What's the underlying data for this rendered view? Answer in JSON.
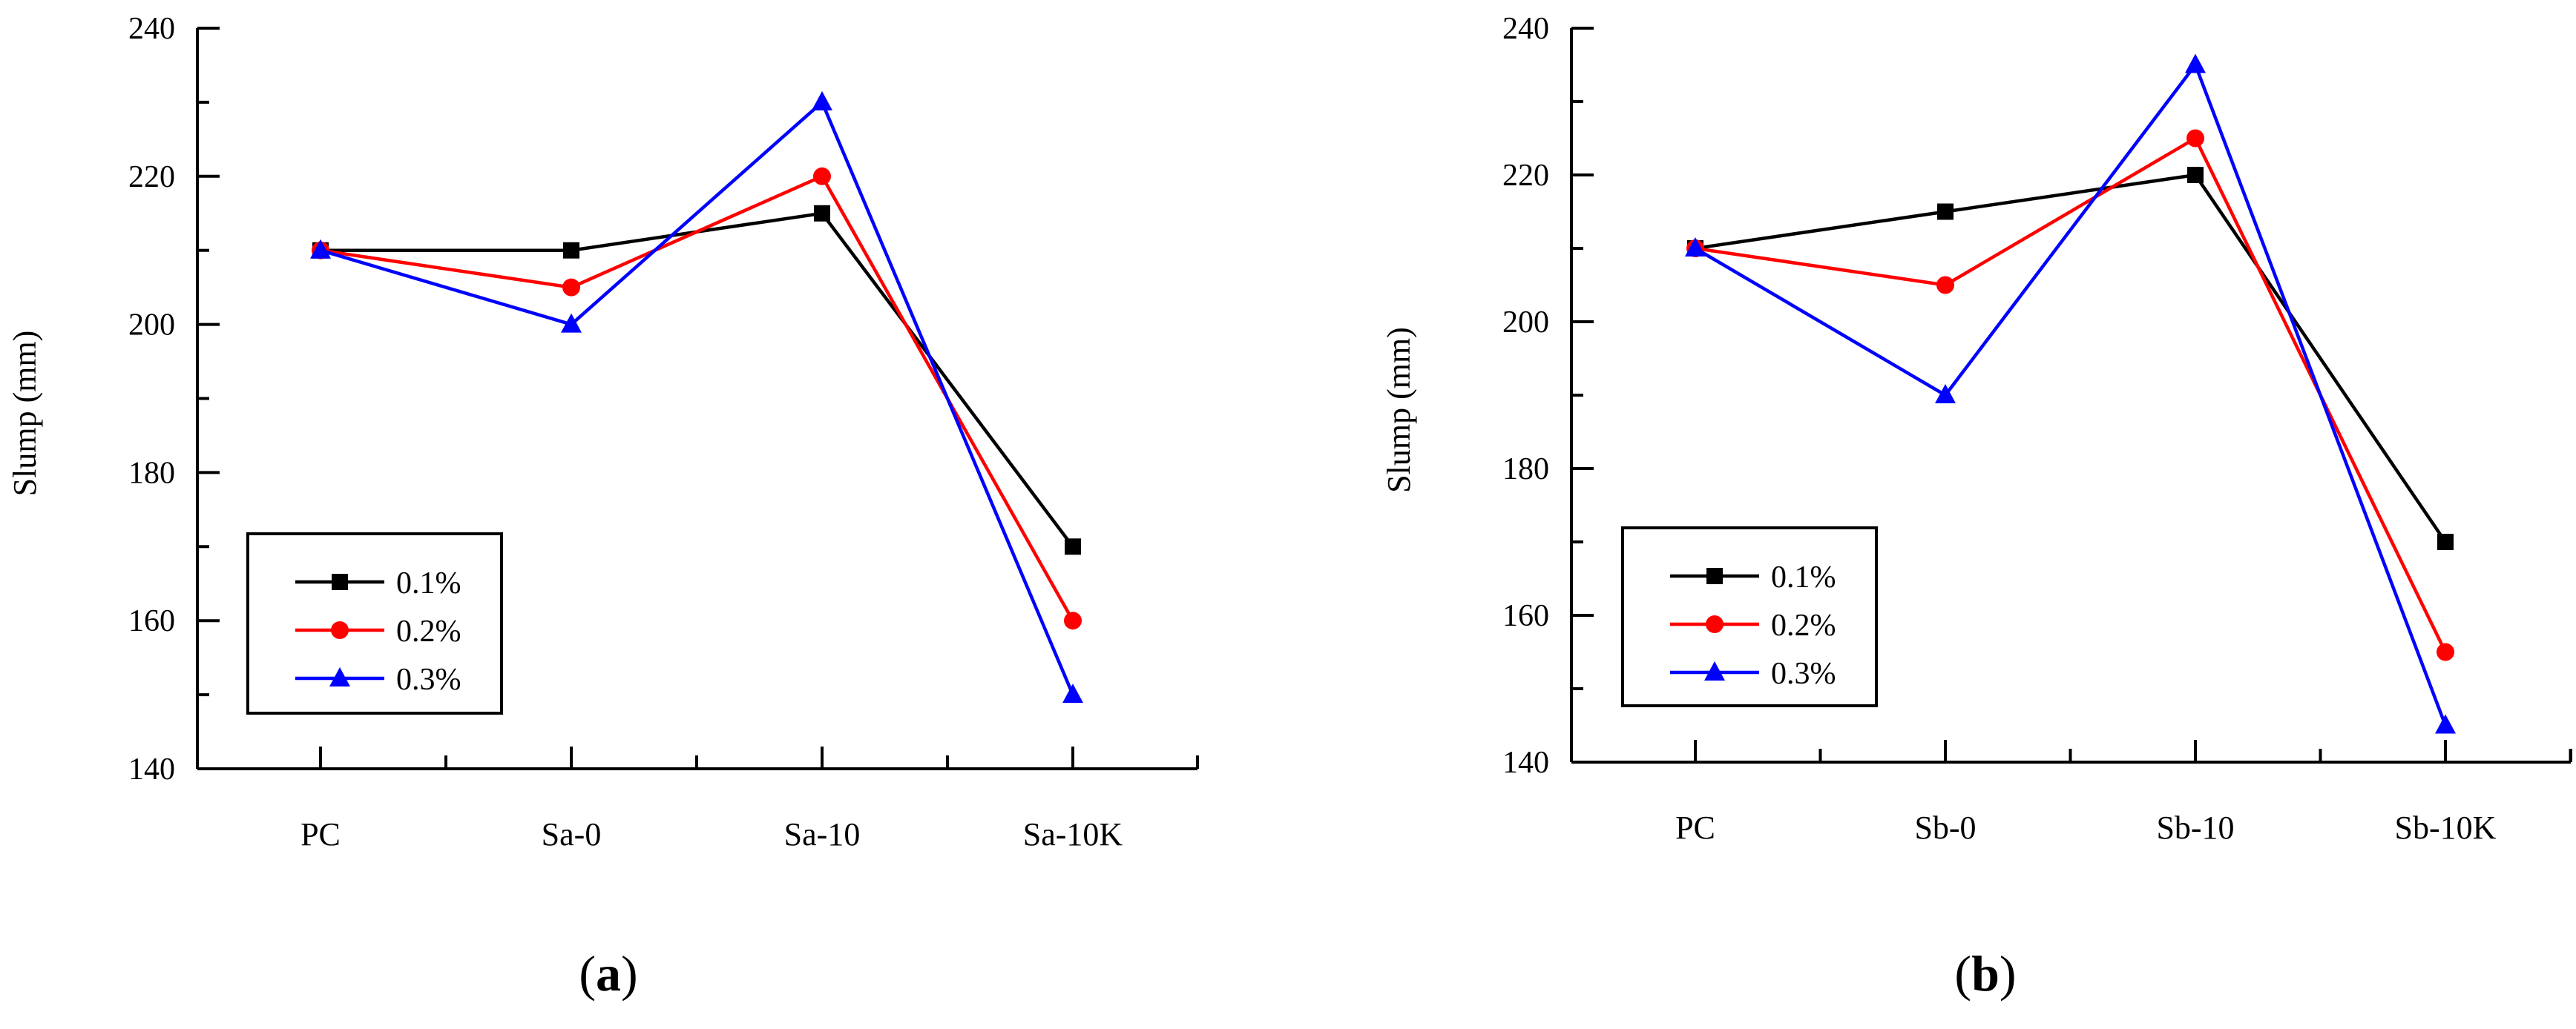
{
  "chart_data": [
    {
      "type": "line",
      "id": "a",
      "caption": "a",
      "categories": [
        "PC",
        "Sa-0",
        "Sa-10",
        "Sa-10K"
      ],
      "ylabel": "Slump (mm)",
      "xlabel": "",
      "ylim": [
        140,
        240
      ],
      "yticks": [
        140,
        160,
        180,
        200,
        220,
        240
      ],
      "grid": false,
      "legend_position": "bottom-left",
      "series": [
        {
          "name": "0.1%",
          "color": "#000000",
          "marker": "square",
          "values": [
            210,
            210,
            215,
            170
          ]
        },
        {
          "name": "0.2%",
          "color": "#ff0000",
          "marker": "circle",
          "values": [
            210,
            205,
            220,
            160
          ]
        },
        {
          "name": "0.3%",
          "color": "#0000ff",
          "marker": "triangle",
          "values": [
            210,
            200,
            230,
            150
          ]
        }
      ]
    },
    {
      "type": "line",
      "id": "b",
      "caption": "b",
      "categories": [
        "PC",
        "Sb-0",
        "Sb-10",
        "Sb-10K"
      ],
      "ylabel": "Slump (mm)",
      "xlabel": "",
      "ylim": [
        140,
        240
      ],
      "yticks": [
        140,
        160,
        180,
        200,
        220,
        240
      ],
      "grid": false,
      "legend_position": "bottom-left",
      "series": [
        {
          "name": "0.1%",
          "color": "#000000",
          "marker": "square",
          "values": [
            210,
            215,
            220,
            170
          ]
        },
        {
          "name": "0.2%",
          "color": "#ff0000",
          "marker": "circle",
          "values": [
            210,
            205,
            225,
            155
          ]
        },
        {
          "name": "0.3%",
          "color": "#0000ff",
          "marker": "triangle",
          "values": [
            210,
            190,
            235,
            145
          ]
        }
      ]
    }
  ]
}
